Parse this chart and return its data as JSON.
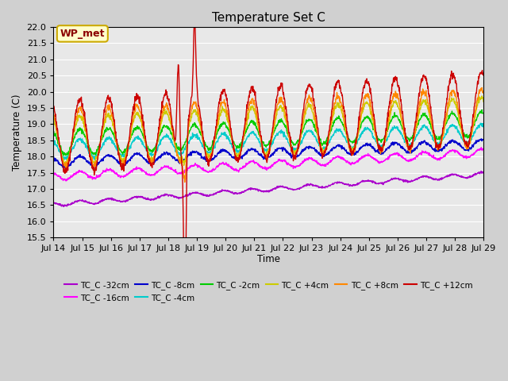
{
  "title": "Temperature Set C",
  "xlabel": "Time",
  "ylabel": "Temperature (C)",
  "xlim": [
    0,
    15
  ],
  "ylim": [
    15.5,
    22.0
  ],
  "yticks": [
    15.5,
    16.0,
    16.5,
    17.0,
    17.5,
    18.0,
    18.5,
    19.0,
    19.5,
    20.0,
    20.5,
    21.0,
    21.5,
    22.0
  ],
  "xtick_labels": [
    "Jul 14",
    "Jul 15",
    "Jul 16",
    "Jul 17",
    "Jul 18",
    "Jul 19",
    "Jul 20",
    "Jul 21",
    "Jul 22",
    "Jul 23",
    "Jul 24",
    "Jul 25",
    "Jul 26",
    "Jul 27",
    "Jul 28",
    "Jul 29"
  ],
  "wp_met_label": "WP_met",
  "series_colors": {
    "TC_C -32cm": "#aa00cc",
    "TC_C -16cm": "#ff00ff",
    "TC_C -8cm": "#0000cc",
    "TC_C -4cm": "#00cccc",
    "TC_C -2cm": "#00cc00",
    "TC_C +4cm": "#cccc00",
    "TC_C +8cm": "#ff8800",
    "TC_C +12cm": "#cc0000"
  },
  "fig_bg": "#d0d0d0",
  "plot_bg": "#e8e8e8"
}
